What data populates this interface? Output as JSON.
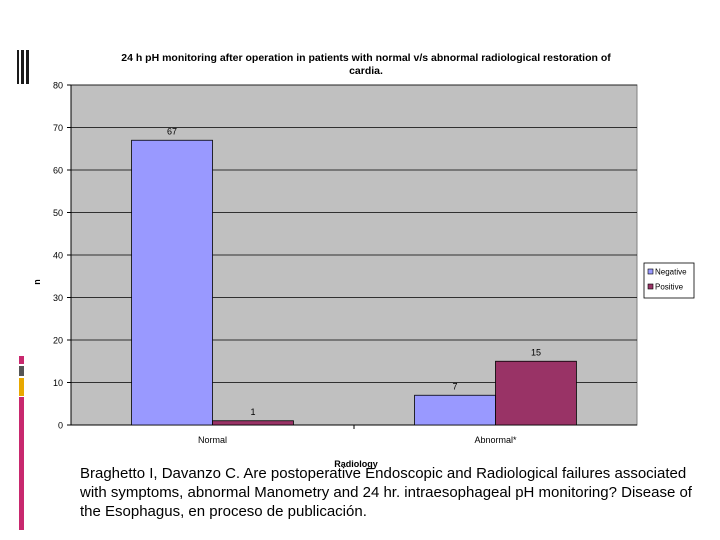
{
  "chart_data": {
    "type": "bar",
    "title": "24 h pH monitoring after operation in patients with normal v/s abnormal radiological restoration of cardia.",
    "title_lines": [
      "24 h pH monitoring  after operation in patients with normal v/s abnormal radiological restoration of",
      "cardia."
    ],
    "xlabel": "Radiology",
    "ylabel": "n",
    "categories": [
      "Normal",
      "Abnormal*"
    ],
    "series": [
      {
        "name": "Negative",
        "values": [
          67,
          7
        ],
        "color": "#9999ff"
      },
      {
        "name": "Positive",
        "values": [
          1,
          15
        ],
        "color": "#993366"
      }
    ],
    "ylim": [
      0,
      80
    ],
    "yticks": [
      0,
      10,
      20,
      30,
      40,
      50,
      60,
      70,
      80
    ],
    "grid": true,
    "legend_position": "right",
    "plot_background": "#c0c0c0"
  },
  "citation": "Braghetto I, Davanzo C. Are postoperative Endoscopic and Radiological failures associated with symptoms, abnormal Manometry and 24 hr. intraesophageal pH monitoring? Disease of the Esophagus, en proceso de  publicación."
}
